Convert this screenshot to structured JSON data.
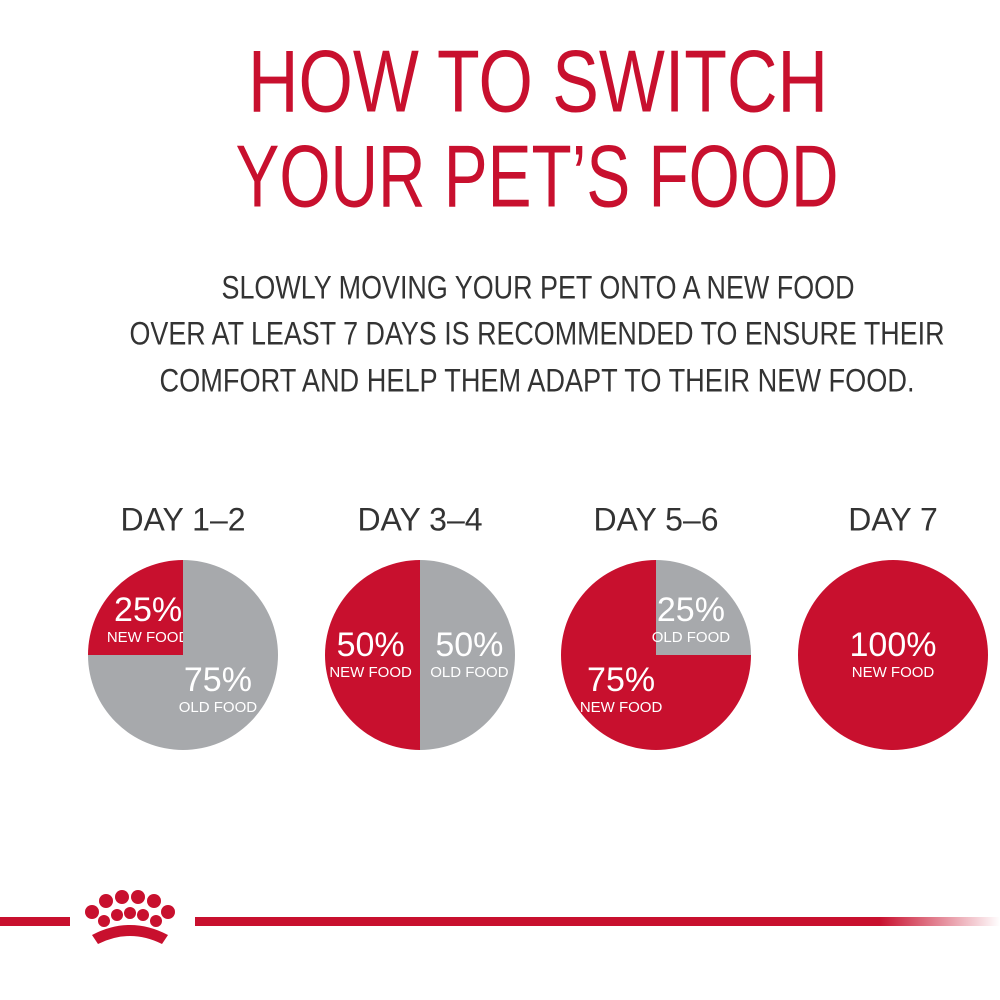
{
  "header": {
    "title": [
      "HOW TO SWITCH",
      "YOUR PET’S FOOD"
    ],
    "subtitle": [
      "SLOWLY MOVING YOUR PET ONTO A NEW FOOD",
      "OVER AT LEAST 7 DAYS IS RECOMMENDED TO ENSURE THEIR",
      "COMFORT AND HELP THEM ADAPT TO THEIR NEW FOOD."
    ]
  },
  "chart_data": [
    {
      "type": "pie",
      "title": "DAY 1–2",
      "categories": [
        "NEW FOOD",
        "OLD FOOD"
      ],
      "values": [
        25,
        75
      ],
      "value_labels": [
        "25%",
        "75%"
      ],
      "colors": [
        "#c8102e",
        "#a7a9ac"
      ]
    },
    {
      "type": "pie",
      "title": "DAY 3–4",
      "categories": [
        "NEW FOOD",
        "OLD FOOD"
      ],
      "values": [
        50,
        50
      ],
      "value_labels": [
        "50%",
        "50%"
      ],
      "colors": [
        "#c8102e",
        "#a7a9ac"
      ]
    },
    {
      "type": "pie",
      "title": "DAY 5–6",
      "categories": [
        "NEW FOOD",
        "OLD FOOD"
      ],
      "values": [
        75,
        25
      ],
      "value_labels": [
        "75%",
        "25%"
      ],
      "colors": [
        "#c8102e",
        "#a7a9ac"
      ]
    },
    {
      "type": "pie",
      "title": "DAY 7",
      "categories": [
        "NEW FOOD"
      ],
      "values": [
        100
      ],
      "value_labels": [
        "100%"
      ],
      "colors": [
        "#c8102e"
      ]
    }
  ]
}
